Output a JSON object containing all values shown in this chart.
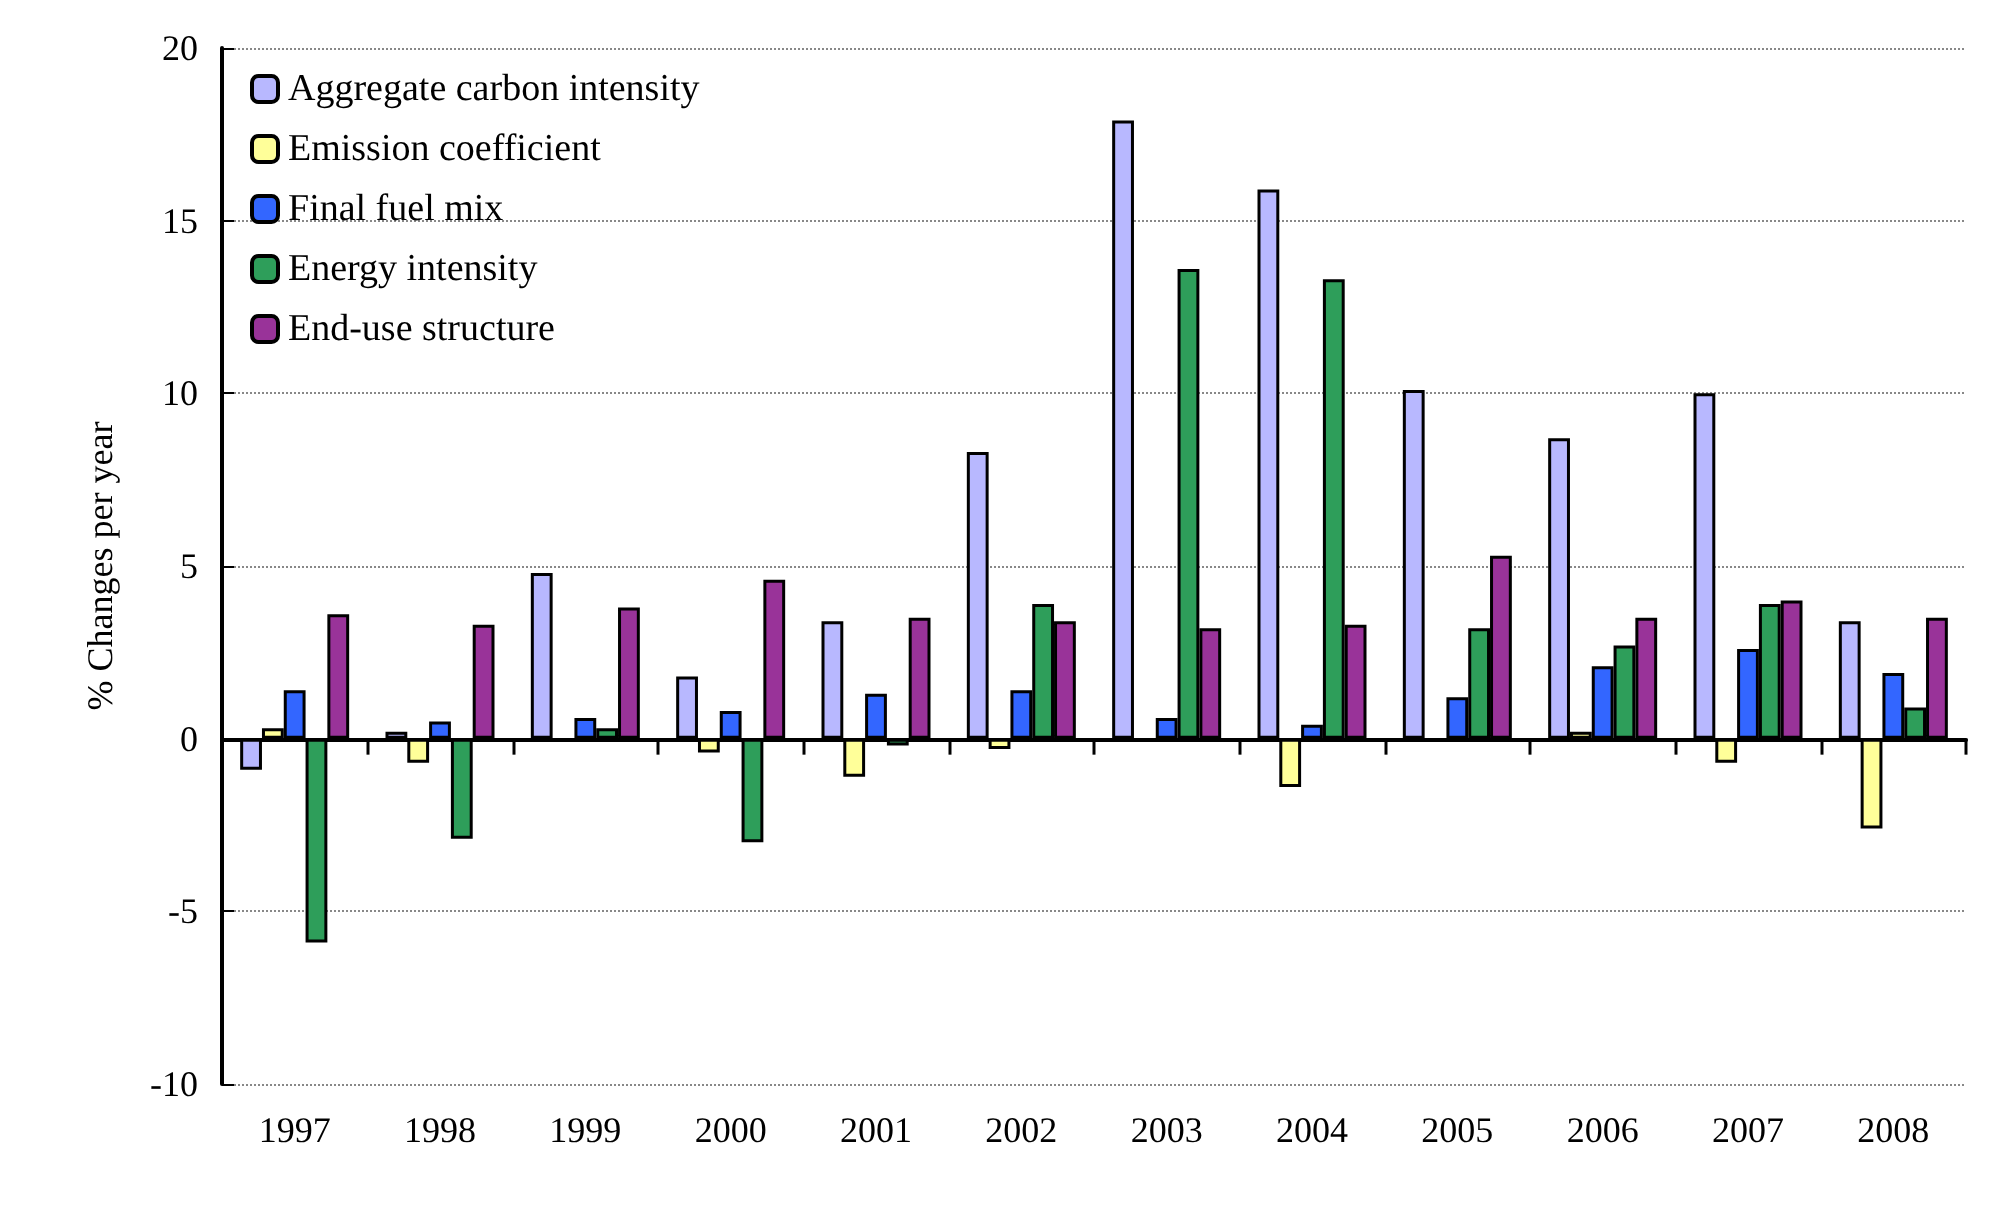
{
  "chart_data": {
    "type": "bar",
    "ylabel": "% Changes per year",
    "categories": [
      "1997",
      "1998",
      "1999",
      "2000",
      "2001",
      "2002",
      "2003",
      "2004",
      "2005",
      "2006",
      "2007",
      "2008"
    ],
    "series": [
      {
        "name": "Aggregate carbon intensity",
        "color": "#b8b8ff",
        "values": [
          -0.9,
          0.2,
          4.8,
          1.8,
          3.4,
          8.3,
          17.9,
          15.9,
          10.1,
          8.7,
          10.0,
          3.4
        ]
      },
      {
        "name": "Emission coefficient",
        "color": "#ffff99",
        "values": [
          0.3,
          -0.7,
          null,
          -0.4,
          -1.1,
          -0.3,
          null,
          -1.4,
          null,
          0.2,
          -0.7,
          -2.6
        ]
      },
      {
        "name": "Final fuel mix",
        "color": "#3366ff",
        "values": [
          1.4,
          0.5,
          0.6,
          0.8,
          1.3,
          1.4,
          0.6,
          0.4,
          1.2,
          2.1,
          2.6,
          1.9
        ]
      },
      {
        "name": "Energy intensity",
        "color": "#2e9e5a",
        "values": [
          -5.9,
          -2.9,
          0.3,
          -3.0,
          -0.2,
          3.9,
          13.6,
          13.3,
          3.2,
          2.7,
          3.9,
          0.9
        ]
      },
      {
        "name": "End-use structure",
        "color": "#993399",
        "values": [
          3.6,
          3.3,
          3.8,
          4.6,
          3.5,
          3.4,
          3.2,
          3.3,
          5.3,
          3.5,
          4.0,
          3.5
        ]
      }
    ],
    "ylim": [
      -10,
      20
    ],
    "yticks": [
      -10,
      -5,
      0,
      5,
      10,
      15,
      20
    ],
    "grid": "y",
    "legend": "top left"
  }
}
